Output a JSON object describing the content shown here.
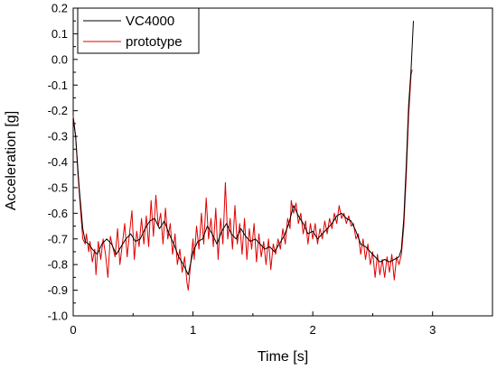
{
  "chart_data": {
    "type": "line",
    "xlabel": "Time [s]",
    "ylabel": "Acceleration [g]",
    "xlim": [
      0,
      3.5
    ],
    "ylim": [
      -1.0,
      0.2
    ],
    "x_ticks": [
      "0",
      "1",
      "2",
      "3"
    ],
    "x_tick_values": [
      0,
      1,
      2,
      3
    ],
    "y_ticks": [
      "0.2",
      "0.1",
      "0.0",
      "-0.1",
      "-0.2",
      "-0.3",
      "-0.4",
      "-0.5",
      "-0.6",
      "-0.7",
      "-0.8",
      "-0.9",
      "-1.0"
    ],
    "y_tick_values": [
      0.2,
      0.1,
      0.0,
      -0.1,
      -0.2,
      -0.3,
      -0.4,
      -0.5,
      -0.6,
      -0.7,
      -0.8,
      -0.9,
      -1.0
    ],
    "grid": false,
    "legend_position": "top-left",
    "series": [
      {
        "name": "VC4000",
        "color": "#000000",
        "points": [
          [
            0.0,
            -0.23
          ],
          [
            0.02,
            -0.3
          ],
          [
            0.05,
            -0.5
          ],
          [
            0.08,
            -0.66
          ],
          [
            0.1,
            -0.71
          ],
          [
            0.13,
            -0.72
          ],
          [
            0.16,
            -0.74
          ],
          [
            0.2,
            -0.76
          ],
          [
            0.24,
            -0.72
          ],
          [
            0.28,
            -0.7
          ],
          [
            0.32,
            -0.72
          ],
          [
            0.36,
            -0.76
          ],
          [
            0.4,
            -0.73
          ],
          [
            0.44,
            -0.7
          ],
          [
            0.48,
            -0.68
          ],
          [
            0.52,
            -0.71
          ],
          [
            0.56,
            -0.7
          ],
          [
            0.6,
            -0.66
          ],
          [
            0.64,
            -0.63
          ],
          [
            0.68,
            -0.62
          ],
          [
            0.72,
            -0.66
          ],
          [
            0.76,
            -0.63
          ],
          [
            0.8,
            -0.68
          ],
          [
            0.84,
            -0.72
          ],
          [
            0.88,
            -0.77
          ],
          [
            0.92,
            -0.8
          ],
          [
            0.96,
            -0.84
          ],
          [
            1.0,
            -0.75
          ],
          [
            1.04,
            -0.71
          ],
          [
            1.08,
            -0.7
          ],
          [
            1.12,
            -0.65
          ],
          [
            1.16,
            -0.68
          ],
          [
            1.2,
            -0.72
          ],
          [
            1.24,
            -0.67
          ],
          [
            1.28,
            -0.64
          ],
          [
            1.32,
            -0.68
          ],
          [
            1.36,
            -0.7
          ],
          [
            1.4,
            -0.66
          ],
          [
            1.44,
            -0.69
          ],
          [
            1.48,
            -0.71
          ],
          [
            1.52,
            -0.7
          ],
          [
            1.56,
            -0.72
          ],
          [
            1.6,
            -0.74
          ],
          [
            1.64,
            -0.73
          ],
          [
            1.68,
            -0.75
          ],
          [
            1.72,
            -0.72
          ],
          [
            1.76,
            -0.69
          ],
          [
            1.8,
            -0.64
          ],
          [
            1.84,
            -0.57
          ],
          [
            1.88,
            -0.61
          ],
          [
            1.92,
            -0.64
          ],
          [
            1.96,
            -0.68
          ],
          [
            2.0,
            -0.67
          ],
          [
            2.04,
            -0.7
          ],
          [
            2.08,
            -0.68
          ],
          [
            2.12,
            -0.66
          ],
          [
            2.16,
            -0.64
          ],
          [
            2.2,
            -0.61
          ],
          [
            2.24,
            -0.6
          ],
          [
            2.28,
            -0.62
          ],
          [
            2.32,
            -0.63
          ],
          [
            2.36,
            -0.67
          ],
          [
            2.4,
            -0.72
          ],
          [
            2.44,
            -0.73
          ],
          [
            2.48,
            -0.75
          ],
          [
            2.52,
            -0.77
          ],
          [
            2.56,
            -0.79
          ],
          [
            2.6,
            -0.78
          ],
          [
            2.64,
            -0.79
          ],
          [
            2.68,
            -0.78
          ],
          [
            2.72,
            -0.77
          ],
          [
            2.74,
            -0.74
          ],
          [
            2.76,
            -0.62
          ],
          [
            2.78,
            -0.42
          ],
          [
            2.8,
            -0.18
          ],
          [
            2.82,
            -0.04
          ],
          [
            2.84,
            0.15
          ]
        ]
      },
      {
        "name": "prototype",
        "color": "#e00000",
        "points": [
          [
            0.0,
            -0.22
          ],
          [
            0.02,
            -0.3
          ],
          [
            0.04,
            -0.45
          ],
          [
            0.06,
            -0.58
          ],
          [
            0.08,
            -0.7
          ],
          [
            0.1,
            -0.72
          ],
          [
            0.11,
            -0.68
          ],
          [
            0.13,
            -0.75
          ],
          [
            0.14,
            -0.71
          ],
          [
            0.16,
            -0.79
          ],
          [
            0.18,
            -0.74
          ],
          [
            0.19,
            -0.84
          ],
          [
            0.21,
            -0.71
          ],
          [
            0.23,
            -0.78
          ],
          [
            0.25,
            -0.7
          ],
          [
            0.27,
            -0.76
          ],
          [
            0.29,
            -0.85
          ],
          [
            0.31,
            -0.69
          ],
          [
            0.33,
            -0.73
          ],
          [
            0.35,
            -0.77
          ],
          [
            0.37,
            -0.66
          ],
          [
            0.39,
            -0.8
          ],
          [
            0.41,
            -0.72
          ],
          [
            0.43,
            -0.64
          ],
          [
            0.45,
            -0.77
          ],
          [
            0.47,
            -0.68
          ],
          [
            0.49,
            -0.59
          ],
          [
            0.51,
            -0.78
          ],
          [
            0.53,
            -0.67
          ],
          [
            0.55,
            -0.73
          ],
          [
            0.57,
            -0.62
          ],
          [
            0.59,
            -0.72
          ],
          [
            0.61,
            -0.61
          ],
          [
            0.63,
            -0.73
          ],
          [
            0.65,
            -0.55
          ],
          [
            0.67,
            -0.69
          ],
          [
            0.69,
            -0.53
          ],
          [
            0.71,
            -0.65
          ],
          [
            0.73,
            -0.6
          ],
          [
            0.75,
            -0.72
          ],
          [
            0.77,
            -0.58
          ],
          [
            0.79,
            -0.7
          ],
          [
            0.81,
            -0.64
          ],
          [
            0.83,
            -0.76
          ],
          [
            0.85,
            -0.68
          ],
          [
            0.87,
            -0.8
          ],
          [
            0.89,
            -0.74
          ],
          [
            0.91,
            -0.83
          ],
          [
            0.93,
            -0.77
          ],
          [
            0.95,
            -0.87
          ],
          [
            0.96,
            -0.9
          ],
          [
            0.98,
            -0.8
          ],
          [
            1.0,
            -0.7
          ],
          [
            1.01,
            -0.78
          ],
          [
            1.03,
            -0.65
          ],
          [
            1.05,
            -0.74
          ],
          [
            1.07,
            -0.6
          ],
          [
            1.09,
            -0.72
          ],
          [
            1.11,
            -0.54
          ],
          [
            1.13,
            -0.7
          ],
          [
            1.15,
            -0.62
          ],
          [
            1.17,
            -0.73
          ],
          [
            1.19,
            -0.58
          ],
          [
            1.21,
            -0.78
          ],
          [
            1.23,
            -0.62
          ],
          [
            1.25,
            -0.72
          ],
          [
            1.27,
            -0.48
          ],
          [
            1.29,
            -0.7
          ],
          [
            1.31,
            -0.62
          ],
          [
            1.33,
            -0.74
          ],
          [
            1.35,
            -0.57
          ],
          [
            1.37,
            -0.72
          ],
          [
            1.39,
            -0.64
          ],
          [
            1.41,
            -0.76
          ],
          [
            1.43,
            -0.62
          ],
          [
            1.45,
            -0.78
          ],
          [
            1.47,
            -0.66
          ],
          [
            1.49,
            -0.74
          ],
          [
            1.51,
            -0.64
          ],
          [
            1.53,
            -0.79
          ],
          [
            1.55,
            -0.68
          ],
          [
            1.57,
            -0.77
          ],
          [
            1.59,
            -0.71
          ],
          [
            1.61,
            -0.8
          ],
          [
            1.63,
            -0.7
          ],
          [
            1.65,
            -0.82
          ],
          [
            1.67,
            -0.72
          ],
          [
            1.69,
            -0.76
          ],
          [
            1.71,
            -0.7
          ],
          [
            1.73,
            -0.74
          ],
          [
            1.75,
            -0.66
          ],
          [
            1.77,
            -0.72
          ],
          [
            1.79,
            -0.62
          ],
          [
            1.81,
            -0.66
          ],
          [
            1.82,
            -0.55
          ],
          [
            1.84,
            -0.6
          ],
          [
            1.86,
            -0.56
          ],
          [
            1.88,
            -0.64
          ],
          [
            1.9,
            -0.6
          ],
          [
            1.92,
            -0.68
          ],
          [
            1.94,
            -0.63
          ],
          [
            1.96,
            -0.72
          ],
          [
            1.98,
            -0.64
          ],
          [
            2.0,
            -0.7
          ],
          [
            2.02,
            -0.64
          ],
          [
            2.04,
            -0.72
          ],
          [
            2.06,
            -0.66
          ],
          [
            2.08,
            -0.7
          ],
          [
            2.1,
            -0.63
          ],
          [
            2.12,
            -0.68
          ],
          [
            2.14,
            -0.62
          ],
          [
            2.16,
            -0.66
          ],
          [
            2.18,
            -0.6
          ],
          [
            2.2,
            -0.64
          ],
          [
            2.22,
            -0.57
          ],
          [
            2.24,
            -0.62
          ],
          [
            2.26,
            -0.6
          ],
          [
            2.28,
            -0.64
          ],
          [
            2.3,
            -0.61
          ],
          [
            2.32,
            -0.65
          ],
          [
            2.34,
            -0.64
          ],
          [
            2.36,
            -0.7
          ],
          [
            2.38,
            -0.68
          ],
          [
            2.4,
            -0.76
          ],
          [
            2.42,
            -0.7
          ],
          [
            2.44,
            -0.78
          ],
          [
            2.46,
            -0.72
          ],
          [
            2.48,
            -0.8
          ],
          [
            2.5,
            -0.75
          ],
          [
            2.52,
            -0.85
          ],
          [
            2.54,
            -0.76
          ],
          [
            2.56,
            -0.84
          ],
          [
            2.58,
            -0.78
          ],
          [
            2.6,
            -0.85
          ],
          [
            2.62,
            -0.77
          ],
          [
            2.64,
            -0.83
          ],
          [
            2.66,
            -0.76
          ],
          [
            2.68,
            -0.86
          ],
          [
            2.7,
            -0.77
          ],
          [
            2.72,
            -0.8
          ],
          [
            2.74,
            -0.76
          ],
          [
            2.76,
            -0.65
          ],
          [
            2.78,
            -0.46
          ],
          [
            2.8,
            -0.22
          ],
          [
            2.82,
            -0.06
          ],
          [
            2.83,
            -0.04
          ]
        ]
      }
    ]
  }
}
